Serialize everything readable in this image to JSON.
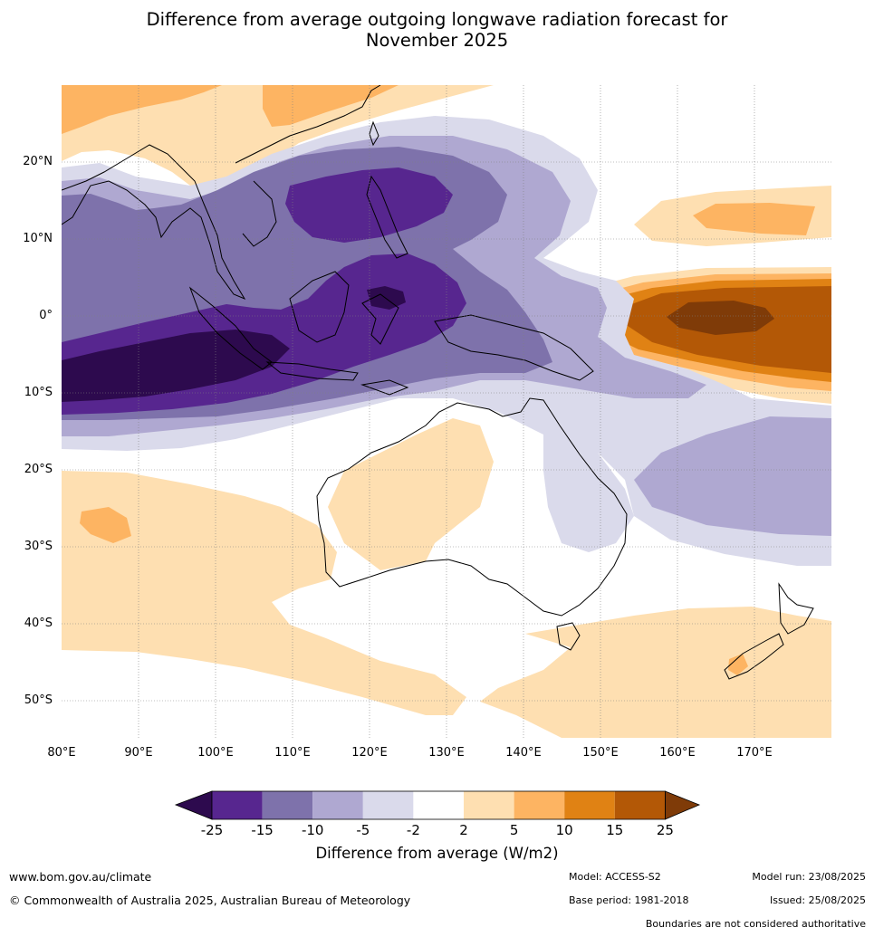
{
  "title_line1": "Difference from average outgoing longwave radiation forecast for",
  "title_line2": "November 2025",
  "map": {
    "lat_labels": [
      "20°N",
      "10°N",
      "0°",
      "10°S",
      "20°S",
      "30°S",
      "40°S",
      "50°S"
    ],
    "lon_labels": [
      "80°E",
      "90°E",
      "100°E",
      "110°E",
      "120°E",
      "130°E",
      "140°E",
      "150°E",
      "160°E",
      "170°E"
    ],
    "colors": {
      "neg_extreme": "#2d0a4e",
      "neg_25_15": "#57268f",
      "neg_15_10": "#7e72ab",
      "neg_10_5": "#afa8d1",
      "neg_5_2": "#dadaeb",
      "neutral": "#ffffff",
      "pos_2_5": "#fedfb1",
      "pos_5_10": "#fdb462",
      "pos_10_15": "#e08214",
      "pos_15_25": "#b35806",
      "pos_extreme": "#7f3b08"
    }
  },
  "colorbar": {
    "ticks": [
      "-25",
      "-15",
      "-10",
      "-5",
      "-2",
      "2",
      "5",
      "10",
      "15",
      "25"
    ],
    "colors": [
      "#57268f",
      "#7e72ab",
      "#afa8d1",
      "#dadaeb",
      "#ffffff",
      "#fedfb1",
      "#fdb462",
      "#e08214",
      "#b35806"
    ],
    "low_extend_color": "#2d0a4e",
    "high_extend_color": "#7f3b08",
    "label": "Difference from average (W/m2)"
  },
  "footer": {
    "website": "www.bom.gov.au/climate",
    "copyright": "© Commonwealth of Australia 2025, Australian Bureau of Meteorology",
    "model": "Model: ACCESS-S2",
    "base_period": "Base period: 1981-2018",
    "model_run": "Model run: 23/08/2025",
    "issued": "Issued: 25/08/2025",
    "disclaimer": "Boundaries are not considered authoritative"
  }
}
